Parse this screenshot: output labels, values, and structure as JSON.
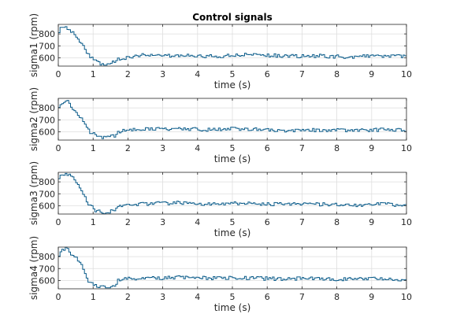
{
  "title": "Control signals",
  "colors": {
    "line": "#0b5c8a",
    "grid": "#dedede",
    "axis": "#262626"
  },
  "chart_data": [
    {
      "type": "line",
      "ylabel": "sigma1 (rpm)",
      "xlabel": "time (s)",
      "xlim": [
        0,
        10
      ],
      "ylim": [
        530,
        880
      ],
      "xticks": [
        0,
        1,
        2,
        3,
        4,
        5,
        6,
        7,
        8,
        9,
        10
      ],
      "yticks": [
        600,
        700,
        800
      ],
      "grid": true,
      "series": [
        {
          "x": [
            0,
            0.1,
            0.2,
            0.3,
            0.4,
            0.5,
            0.6,
            0.7,
            0.8,
            0.9,
            1.0,
            1.1,
            1.2,
            1.4,
            1.6,
            1.7,
            2.0,
            2.5,
            3,
            3.5,
            4,
            4.5,
            5,
            5.5,
            6,
            6.5,
            7,
            7.5,
            8,
            8.5,
            9,
            9.5,
            10
          ],
          "y": [
            820,
            870,
            850,
            840,
            810,
            760,
            730,
            700,
            650,
            610,
            580,
            560,
            545,
            555,
            560,
            590,
            605,
            625,
            615,
            620,
            615,
            610,
            620,
            625,
            620,
            615,
            612,
            615,
            610,
            605,
            620,
            615,
            610
          ]
        }
      ]
    },
    {
      "type": "line",
      "ylabel": "sigma2 (rpm)",
      "xlabel": "time (s)",
      "xlim": [
        0,
        10
      ],
      "ylim": [
        530,
        880
      ],
      "xticks": [
        0,
        1,
        2,
        3,
        4,
        5,
        6,
        7,
        8,
        9,
        10
      ],
      "yticks": [
        600,
        700,
        800
      ],
      "grid": true,
      "series": [
        {
          "x": [
            0,
            0.1,
            0.2,
            0.3,
            0.4,
            0.5,
            0.6,
            0.7,
            0.8,
            0.9,
            1.0,
            1.1,
            1.2,
            1.4,
            1.6,
            1.7,
            2.0,
            2.5,
            3,
            3.5,
            4,
            4.5,
            5,
            5.5,
            6,
            6.5,
            7,
            7.5,
            8,
            8.5,
            9,
            9.5,
            10
          ],
          "y": [
            810,
            850,
            870,
            840,
            780,
            760,
            720,
            690,
            640,
            600,
            580,
            560,
            555,
            550,
            570,
            600,
            610,
            625,
            620,
            625,
            620,
            615,
            625,
            620,
            615,
            612,
            610,
            615,
            612,
            608,
            615,
            620,
            612
          ]
        }
      ]
    },
    {
      "type": "line",
      "ylabel": "sigma3 (rpm)",
      "xlabel": "time (s)",
      "xlim": [
        0,
        10
      ],
      "ylim": [
        530,
        880
      ],
      "xticks": [
        0,
        1,
        2,
        3,
        4,
        5,
        6,
        7,
        8,
        9,
        10
      ],
      "yticks": [
        600,
        700,
        800
      ],
      "grid": true,
      "series": [
        {
          "x": [
            0,
            0.1,
            0.2,
            0.3,
            0.4,
            0.5,
            0.6,
            0.7,
            0.8,
            0.9,
            1.0,
            1.1,
            1.2,
            1.4,
            1.6,
            1.7,
            2.0,
            2.5,
            3,
            3.5,
            4,
            4.5,
            5,
            5.5,
            6,
            6.5,
            7,
            7.5,
            8,
            8.5,
            9,
            9.5,
            10
          ],
          "y": [
            840,
            860,
            865,
            855,
            830,
            790,
            740,
            690,
            640,
            600,
            570,
            555,
            550,
            545,
            560,
            590,
            605,
            615,
            620,
            625,
            618,
            615,
            620,
            618,
            612,
            615,
            610,
            612,
            608,
            605,
            612,
            610,
            605
          ]
        }
      ]
    },
    {
      "type": "line",
      "ylabel": "sigma4 (rpm)",
      "xlabel": "time (s)",
      "xlim": [
        0,
        10
      ],
      "ylim": [
        530,
        880
      ],
      "xticks": [
        0,
        1,
        2,
        3,
        4,
        5,
        6,
        7,
        8,
        9,
        10
      ],
      "yticks": [
        600,
        700,
        800
      ],
      "grid": true,
      "series": [
        {
          "x": [
            0,
            0.1,
            0.2,
            0.3,
            0.4,
            0.5,
            0.6,
            0.7,
            0.8,
            0.9,
            1.0,
            1.1,
            1.2,
            1.4,
            1.6,
            1.7,
            2.0,
            2.5,
            3,
            3.5,
            4,
            4.5,
            5,
            5.5,
            6,
            6.5,
            7,
            7.5,
            8,
            8.5,
            9,
            9.5,
            10
          ],
          "y": [
            800,
            860,
            870,
            850,
            800,
            790,
            750,
            700,
            620,
            580,
            560,
            550,
            545,
            540,
            555,
            600,
            615,
            625,
            620,
            628,
            622,
            618,
            624,
            620,
            615,
            612,
            618,
            614,
            610,
            612,
            620,
            612,
            608
          ]
        }
      ]
    }
  ]
}
